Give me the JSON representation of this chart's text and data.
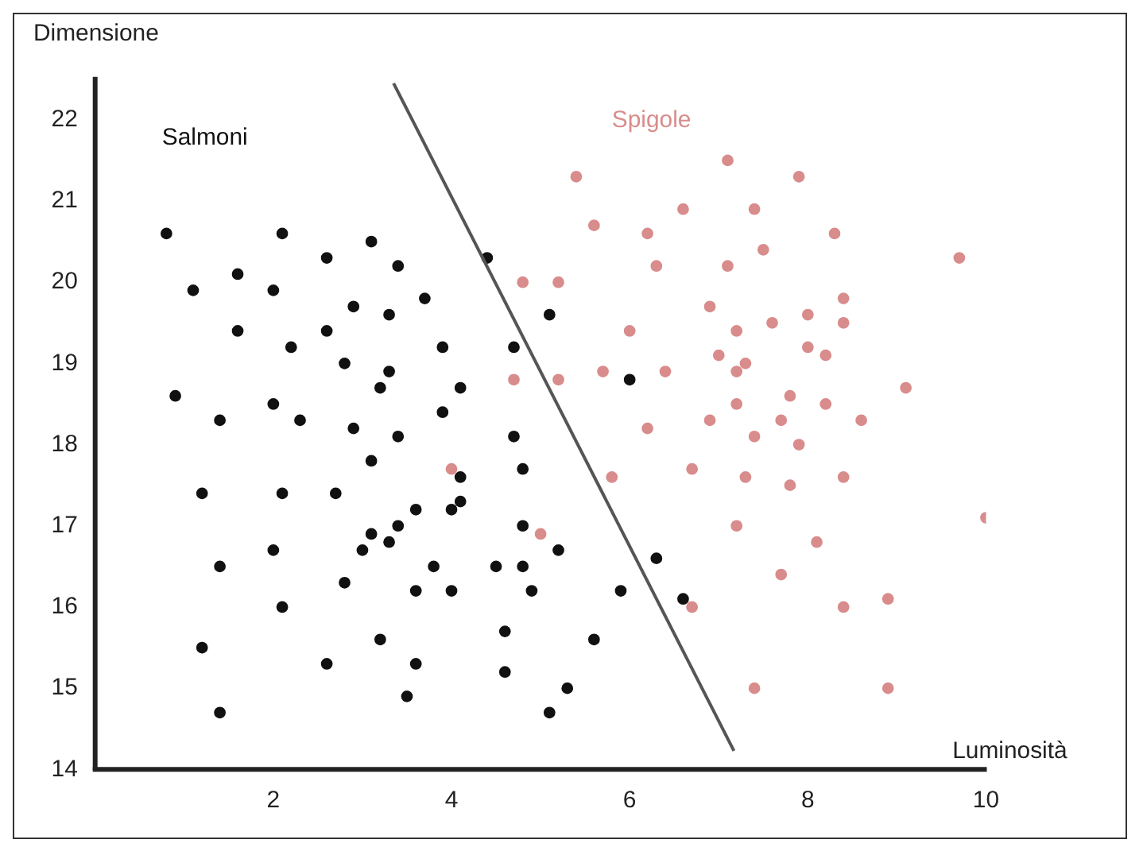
{
  "chart_data": {
    "type": "scatter",
    "xlabel": "Luminosità",
    "ylabel": "Dimensione",
    "xlim": [
      0,
      10
    ],
    "ylim": [
      14,
      22.5
    ],
    "xticks": [
      2,
      4,
      6,
      8,
      10
    ],
    "yticks": [
      14,
      15,
      16,
      17,
      18,
      19,
      20,
      21,
      22
    ],
    "grid": false,
    "legend": false,
    "marker": "circle",
    "series": [
      {
        "name": "Salmoni",
        "color": "#111111",
        "x": [
          0.8,
          2.1,
          3.1,
          2.6,
          3.4,
          1.6,
          2.0,
          1.1,
          3.7,
          2.9,
          3.3,
          2.6,
          1.6,
          2.2,
          3.9,
          2.8,
          3.3,
          3.2,
          4.1,
          0.9,
          1.4,
          2.0,
          2.3,
          2.9,
          3.9,
          3.4,
          4.4,
          3.1,
          4.1,
          1.2,
          2.1,
          2.7,
          4.1,
          3.6,
          4.0,
          3.4,
          3.1,
          3.3,
          3.0,
          2.0,
          1.4,
          3.8,
          4.5,
          2.8,
          3.6,
          4.0,
          2.1,
          3.2,
          1.2,
          2.6,
          3.6,
          3.5,
          1.4,
          4.7,
          4.8,
          4.8,
          5.2,
          4.8,
          4.9,
          5.9,
          6.3,
          6.6,
          4.6,
          5.6,
          4.6,
          5.3,
          5.1,
          5.1,
          4.7,
          6.0
        ],
        "values": [
          20.6,
          20.6,
          20.5,
          20.3,
          20.2,
          20.1,
          19.9,
          19.9,
          19.8,
          19.7,
          19.6,
          19.4,
          19.4,
          19.2,
          19.2,
          19.0,
          18.9,
          18.7,
          18.7,
          18.6,
          18.3,
          18.5,
          18.3,
          18.2,
          18.4,
          18.1,
          20.3,
          17.8,
          17.6,
          17.4,
          17.4,
          17.4,
          17.3,
          17.2,
          17.2,
          17.0,
          16.9,
          16.8,
          16.7,
          16.7,
          16.5,
          16.5,
          16.5,
          16.3,
          16.2,
          16.2,
          16.0,
          15.6,
          15.5,
          15.3,
          15.3,
          14.9,
          14.7,
          18.1,
          17.7,
          17.0,
          16.7,
          16.5,
          16.2,
          16.2,
          16.6,
          16.1,
          15.7,
          15.6,
          15.2,
          15.0,
          14.7,
          19.6,
          19.2,
          18.8
        ]
      },
      {
        "name": "Spigole",
        "color": "#d98c8c",
        "x": [
          4.0,
          5.0,
          6.7,
          5.8,
          6.7,
          7.3,
          7.4,
          7.2,
          7.7,
          7.4,
          7.1,
          5.4,
          5.6,
          6.2,
          6.6,
          7.4,
          7.5,
          6.3,
          7.1,
          4.8,
          5.2,
          6.9,
          6.0,
          7.2,
          7.6,
          7.0,
          7.3,
          7.2,
          5.7,
          6.4,
          4.7,
          5.2,
          7.2,
          6.9,
          7.7,
          6.2,
          7.9,
          8.3,
          9.7,
          8.4,
          8.4,
          8.0,
          8.0,
          8.2,
          9.1,
          7.8,
          8.2,
          8.6,
          7.9,
          7.8,
          8.4,
          10.0,
          8.1,
          8.9,
          8.4,
          8.9
        ],
        "values": [
          17.7,
          16.9,
          16.0,
          17.6,
          17.7,
          17.6,
          18.1,
          17.0,
          16.4,
          15.0,
          21.5,
          21.3,
          20.7,
          20.6,
          20.9,
          20.9,
          20.4,
          20.2,
          20.2,
          20.0,
          20.0,
          19.7,
          19.4,
          19.4,
          19.5,
          19.1,
          19.0,
          18.9,
          18.9,
          18.9,
          18.8,
          18.8,
          18.5,
          18.3,
          18.3,
          18.2,
          21.3,
          20.6,
          20.3,
          19.8,
          19.5,
          19.6,
          19.2,
          19.1,
          18.7,
          18.6,
          18.5,
          18.3,
          18.0,
          17.5,
          17.6,
          17.1,
          16.8,
          16.1,
          16.0,
          15.0
        ]
      },
      {
        "type": "line",
        "color": "#555555",
        "x": [
          3.35,
          7.17
        ],
        "values": [
          22.45,
          14.23
        ],
        "marker": "none"
      }
    ]
  }
}
